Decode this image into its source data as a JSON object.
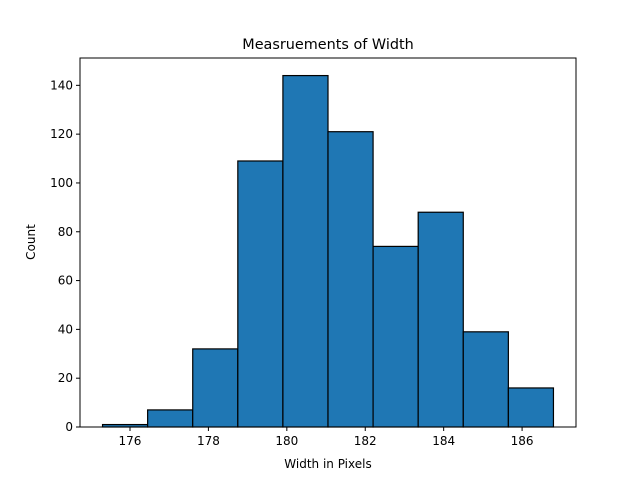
{
  "chart_data": {
    "type": "bar",
    "title": "Measruements of Width",
    "xlabel": "Width in Pixels",
    "ylabel": "Count",
    "bins": [
      {
        "x0": 175.3,
        "x1": 176.45,
        "count": 1
      },
      {
        "x0": 176.45,
        "x1": 177.6,
        "count": 7
      },
      {
        "x0": 177.6,
        "x1": 178.75,
        "count": 32
      },
      {
        "x0": 178.75,
        "x1": 179.9,
        "count": 109
      },
      {
        "x0": 179.9,
        "x1": 181.05,
        "count": 144
      },
      {
        "x0": 181.05,
        "x1": 182.2,
        "count": 121
      },
      {
        "x0": 182.2,
        "x1": 183.35,
        "count": 74
      },
      {
        "x0": 183.35,
        "x1": 184.5,
        "count": 88
      },
      {
        "x0": 184.5,
        "x1": 185.65,
        "count": 39
      },
      {
        "x0": 185.65,
        "x1": 186.8,
        "count": 16
      }
    ],
    "xlim": [
      174.725,
      187.375
    ],
    "ylim": [
      0,
      151.2
    ],
    "xticks": [
      176,
      178,
      180,
      182,
      184,
      186
    ],
    "yticks": [
      0,
      20,
      40,
      60,
      80,
      100,
      120,
      140
    ],
    "grid": false,
    "bar_color": "#1f77b4",
    "edge_color": "#000000"
  }
}
